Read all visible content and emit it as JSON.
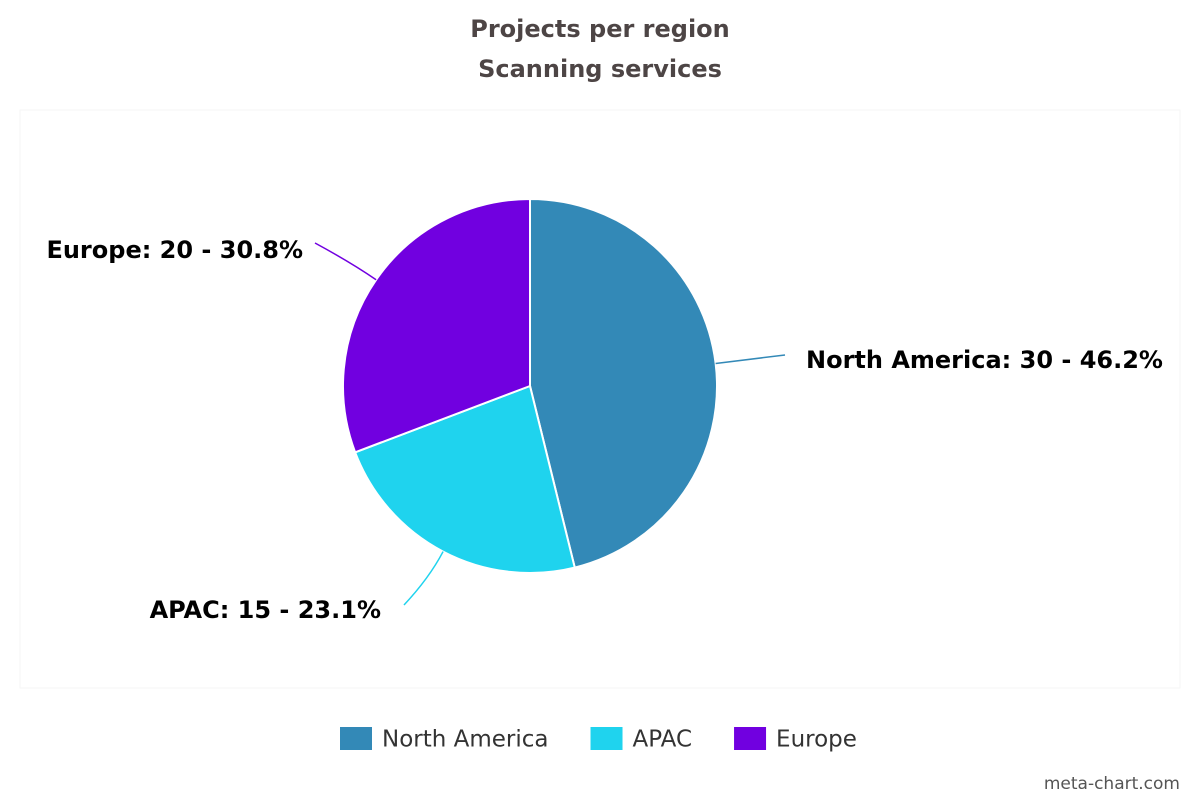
{
  "chart_data": {
    "type": "pie",
    "title": "Projects per region",
    "subtitle": "Scanning services",
    "categories": [
      "North America",
      "APAC",
      "Europe"
    ],
    "values": [
      30,
      15,
      20
    ],
    "value_labels": [
      "North America: 30 - 46.2%",
      "APAC: 15 - 23.1%",
      "Europe: 20 - 30.8%"
    ],
    "colors": [
      "#3389b7",
      "#1fd3ee",
      "#7100e0"
    ],
    "legend": "bottom",
    "credit": "meta-chart.com"
  }
}
